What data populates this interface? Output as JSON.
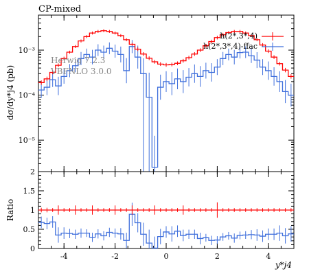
{
  "chart_data": {
    "type": "line",
    "title": "CP-mixed",
    "generator_label_1": "Herwig 7.2.3",
    "generator_label_2": "VBFNLO 3.0.0",
    "main": {
      "ylabel": "dσ/dy*j4 (pb)",
      "yscale": "log",
      "ylim": [
        2e-06,
        0.006
      ],
      "yticks": [
        {
          "value": 1e-05,
          "label": "10⁻⁵"
        },
        {
          "value": 0.0001,
          "label": "10⁻⁴"
        },
        {
          "value": 0.001,
          "label": "10⁻³"
        }
      ]
    },
    "ratio": {
      "ylabel": "Ratio",
      "ylim": [
        0,
        2
      ],
      "yticks": [
        {
          "value": 0,
          "label": "0"
        },
        {
          "value": 0.5,
          "label": "0.5"
        },
        {
          "value": 1,
          "label": "1"
        },
        {
          "value": 1.5,
          "label": "1.5"
        },
        {
          "value": 2,
          "label": "2"
        }
      ]
    },
    "xlabel": "y*j4",
    "xlim": [
      -5,
      5
    ],
    "xticks": [
      {
        "value": -4,
        "label": "-4"
      },
      {
        "value": -2,
        "label": "-2"
      },
      {
        "value": 0,
        "label": "0"
      },
      {
        "value": 2,
        "label": "2"
      },
      {
        "value": 4,
        "label": "4"
      }
    ],
    "legend_position": "top-right",
    "series": [
      {
        "name": "h(2*,3*,4)",
        "color": "#ff0000",
        "values": [
          0.00019,
          0.00023,
          0.00032,
          0.00046,
          0.00065,
          0.0009,
          0.0012,
          0.0016,
          0.002,
          0.0024,
          0.0026,
          0.0027,
          0.0026,
          0.0024,
          0.0021,
          0.0017,
          0.00135,
          0.00105,
          0.00082,
          0.00066,
          0.00055,
          0.00049,
          0.00047,
          0.00048,
          0.00051,
          0.00058,
          0.00068,
          0.00082,
          0.001,
          0.00125,
          0.00155,
          0.0019,
          0.0022,
          0.00245,
          0.0026,
          0.0026,
          0.0024,
          0.0021,
          0.0017,
          0.0013,
          0.00095,
          0.0007,
          0.0005,
          0.00036,
          0.00026
        ],
        "errors": [
          0.12,
          0.12,
          0.1,
          0.1,
          0.1,
          0.08,
          0.08,
          0.08,
          0.08,
          0.08,
          0.08,
          0.08,
          0.08,
          0.08,
          0.08,
          0.08,
          0.08,
          0.1,
          0.1,
          0.1,
          0.1,
          0.1,
          0.1,
          0.1,
          0.1,
          0.1,
          0.1,
          0.1,
          0.1,
          0.1,
          0.1,
          0.1,
          0.1,
          0.08,
          0.08,
          0.08,
          0.08,
          0.08,
          0.08,
          0.1,
          0.1,
          0.1,
          0.1,
          0.12,
          0.12
        ]
      },
      {
        "name": "h(2*,3*,4)-ffac",
        "color": "#3f6fdc",
        "values": [
          0.00013,
          0.00015,
          0.00022,
          0.00016,
          0.00026,
          0.00035,
          0.00045,
          0.00065,
          0.0008,
          0.0007,
          0.001,
          0.0009,
          0.0011,
          0.00095,
          0.0008,
          0.00035,
          0.0012,
          0.0007,
          0.0003,
          9e-05,
          2.5e-06,
          0.00015,
          0.0002,
          0.00018,
          0.00023,
          0.0002,
          0.00025,
          0.0003,
          0.00026,
          0.00035,
          0.00032,
          0.00042,
          0.00065,
          0.0008,
          0.0007,
          0.00088,
          0.0009,
          0.00075,
          0.0006,
          0.00042,
          0.00035,
          0.00026,
          0.0002,
          0.00012,
          0.0001
        ],
        "errors": [
          0.5,
          0.5,
          0.45,
          0.6,
          0.45,
          0.4,
          0.4,
          0.4,
          0.35,
          0.45,
          0.35,
          0.4,
          0.35,
          0.4,
          0.5,
          0.9,
          0.4,
          0.8,
          1.2,
          2.5,
          4,
          0.9,
          0.7,
          0.8,
          0.7,
          0.8,
          0.6,
          0.6,
          0.7,
          0.5,
          0.6,
          0.5,
          0.4,
          0.35,
          0.45,
          0.35,
          0.35,
          0.45,
          0.5,
          0.5,
          0.6,
          0.6,
          0.7,
          0.8,
          0.8
        ]
      }
    ],
    "ratio_series": [
      {
        "name": "h(2*,3*,4)",
        "values": [
          1,
          1,
          1,
          1,
          1,
          1,
          1,
          1,
          1,
          1,
          1,
          1,
          1,
          1,
          1,
          1,
          1,
          1,
          1,
          1,
          1,
          1,
          1,
          1,
          1,
          1,
          1,
          1,
          1,
          1,
          1,
          1,
          1,
          1,
          1,
          1,
          1,
          1,
          1,
          1,
          1,
          1,
          1,
          1,
          1
        ],
        "errors": [
          0.06,
          0.06,
          0.05,
          0.12,
          0.05,
          0.05,
          0.12,
          0.05,
          0.05,
          0.12,
          0.05,
          0.05,
          0.05,
          0.12,
          0.05,
          0.05,
          0.12,
          0.05,
          0.05,
          0.05,
          0.12,
          0.05,
          0.05,
          0.05,
          0.05,
          0.12,
          0.05,
          0.05,
          0.05,
          0.05,
          0.05,
          0.2,
          0.05,
          0.05,
          0.05,
          0.05,
          0.05,
          0.05,
          0.05,
          0.05,
          0.05,
          0.05,
          0.05,
          0.05,
          0.05
        ]
      },
      {
        "name": "h(2*,3*,4)-ffac",
        "values": [
          0.68,
          0.65,
          0.69,
          0.35,
          0.4,
          0.39,
          0.37,
          0.4,
          0.4,
          0.29,
          0.38,
          0.33,
          0.42,
          0.4,
          0.38,
          0.21,
          0.89,
          0.67,
          0.37,
          0.14,
          0.01,
          0.31,
          0.43,
          0.38,
          0.45,
          0.34,
          0.37,
          0.37,
          0.26,
          0.28,
          0.21,
          0.22,
          0.3,
          0.33,
          0.27,
          0.34,
          0.35,
          0.36,
          0.35,
          0.32,
          0.37,
          0.37,
          0.4,
          0.33,
          0.38
        ],
        "errors": [
          0.15,
          0.15,
          0.15,
          0.2,
          0.15,
          0.12,
          0.12,
          0.12,
          0.1,
          0.12,
          0.12,
          0.12,
          0.12,
          0.12,
          0.15,
          0.2,
          0.3,
          0.25,
          0.3,
          0.35,
          0.3,
          0.2,
          0.15,
          0.2,
          0.15,
          0.15,
          0.12,
          0.12,
          0.15,
          0.1,
          0.12,
          0.1,
          0.1,
          0.1,
          0.12,
          0.1,
          0.1,
          0.12,
          0.15,
          0.15,
          0.15,
          0.15,
          0.2,
          0.2,
          0.2
        ]
      }
    ]
  }
}
